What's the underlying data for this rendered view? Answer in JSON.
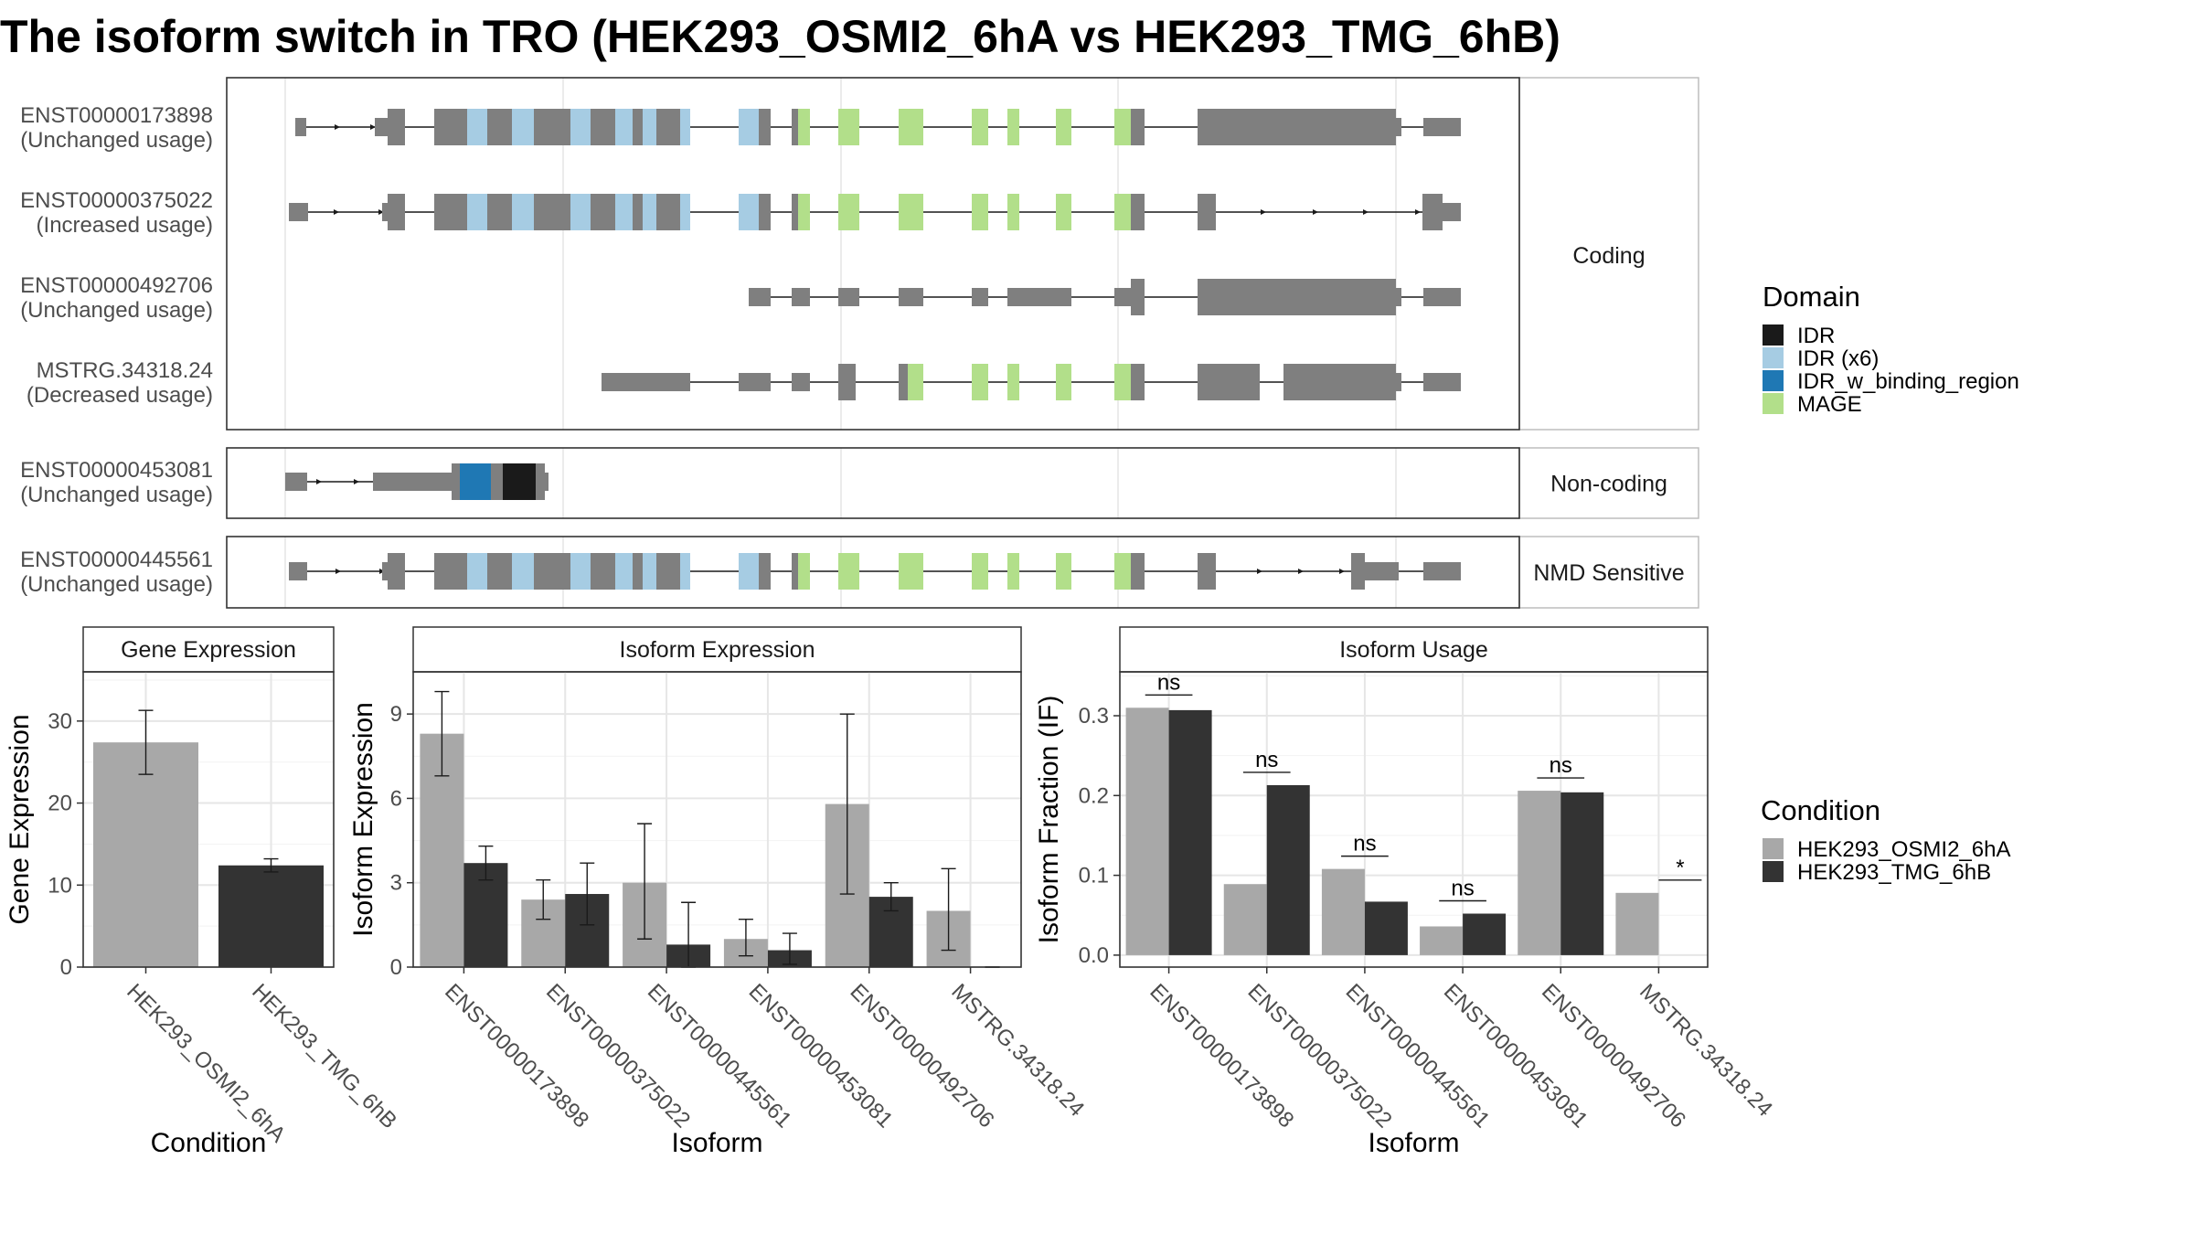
{
  "title": "The isoform switch in TRO (HEK293_OSMI2_6hA vs HEK293_TMG_6hB)",
  "colors": {
    "exon": "#7f7f7f",
    "IDR": "#1a1a1a",
    "IDR (x6)": "#a6cce3",
    "IDR_w_binding_region": "#1f78b4",
    "MAGE": "#b2df8a",
    "condA": "#a8a8a8",
    "condB": "#333333"
  },
  "structure": {
    "groups": [
      {
        "label": "Coding",
        "transcripts": [
          {
            "id": "ENST00000173898",
            "usage": "(Unchanged usage)"
          },
          {
            "id": "ENST00000375022",
            "usage": "(Increased usage)"
          },
          {
            "id": "ENST00000492706",
            "usage": "(Unchanged usage)"
          },
          {
            "id": "MSTRG.34318.24",
            "usage": "(Decreased usage)"
          }
        ]
      },
      {
        "label": "Non-coding",
        "transcripts": [
          {
            "id": "ENST00000453081",
            "usage": "(Unchanged usage)"
          }
        ]
      },
      {
        "label": "NMD Sensitive",
        "transcripts": [
          {
            "id": "ENST00000445561",
            "usage": "(Unchanged usage)"
          }
        ]
      }
    ]
  },
  "legend_domain": {
    "title": "Domain",
    "items": [
      "IDR",
      "IDR (x6)",
      "IDR_w_binding_region",
      "MAGE"
    ]
  },
  "legend_condition": {
    "title": "Condition",
    "items": [
      "HEK293_OSMI2_6hA",
      "HEK293_TMG_6hB"
    ]
  },
  "chart_data": [
    {
      "type": "bar",
      "title": "Gene Expression",
      "xlabel": "Condition",
      "ylabel": "Gene Expression",
      "categories": [
        "HEK293_OSMI2_6hA",
        "HEK293_TMG_6hB"
      ],
      "series": [
        {
          "name": "HEK293_OSMI2_6hA",
          "values": [
            27.4,
            null
          ],
          "error_low": [
            23.5,
            null
          ],
          "error_high": [
            31.3,
            null
          ]
        },
        {
          "name": "HEK293_TMG_6hB",
          "values": [
            null,
            12.4
          ],
          "error_low": [
            null,
            11.6
          ],
          "error_high": [
            null,
            13.2
          ]
        }
      ],
      "ylim": [
        0,
        36
      ],
      "yticks": [
        0,
        10,
        20,
        30
      ],
      "grid": true
    },
    {
      "type": "bar",
      "title": "Isoform Expression",
      "xlabel": "Isoform",
      "ylabel": "Isoform Expression",
      "categories": [
        "ENST00000173898",
        "ENST00000375022",
        "ENST00000445561",
        "ENST00000453081",
        "ENST00000492706",
        "MSTRG.34318.24"
      ],
      "series": [
        {
          "name": "HEK293_OSMI2_6hA",
          "values": [
            8.3,
            2.4,
            3.0,
            1.0,
            5.8,
            2.0
          ],
          "error_low": [
            6.8,
            1.7,
            1.0,
            0.4,
            2.6,
            0.6
          ],
          "error_high": [
            9.8,
            3.1,
            5.1,
            1.7,
            9.0,
            3.5
          ]
        },
        {
          "name": "HEK293_TMG_6hB",
          "values": [
            3.7,
            2.6,
            0.8,
            0.6,
            2.5,
            0.0
          ],
          "error_low": [
            3.1,
            1.5,
            0.0,
            0.1,
            2.0,
            0.0
          ],
          "error_high": [
            4.3,
            3.7,
            2.3,
            1.2,
            3.0,
            0.0
          ]
        }
      ],
      "ylim": [
        0,
        10.5
      ],
      "yticks": [
        0,
        3,
        6,
        9
      ],
      "grid": true
    },
    {
      "type": "bar",
      "title": "Isoform Usage",
      "xlabel": "Isoform",
      "ylabel": "Isoform Fraction (IF)",
      "categories": [
        "ENST00000173898",
        "ENST00000375022",
        "ENST00000445561",
        "ENST00000453081",
        "ENST00000492706",
        "MSTRG.34318.24"
      ],
      "series": [
        {
          "name": "HEK293_OSMI2_6hA",
          "values": [
            0.31,
            0.089,
            0.108,
            0.036,
            0.206,
            0.078
          ]
        },
        {
          "name": "HEK293_TMG_6hB",
          "values": [
            0.307,
            0.213,
            0.067,
            0.052,
            0.204,
            0.0
          ]
        }
      ],
      "significance": [
        "ns",
        "ns",
        "ns",
        "ns",
        "ns",
        "*"
      ],
      "ylim": [
        -0.015,
        0.355
      ],
      "yticks": [
        0.0,
        0.1,
        0.2,
        0.3
      ],
      "yticklabels": [
        "0.0",
        "0.1",
        "0.2",
        "0.3"
      ],
      "grid": true
    }
  ]
}
